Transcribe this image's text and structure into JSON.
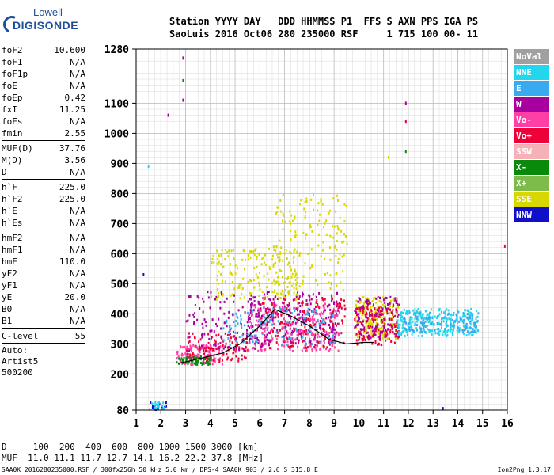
{
  "logo": {
    "line1": "Lowell",
    "line2": "DIGISONDE"
  },
  "header": {
    "labels": "Station YYYY DAY   DDD HHMMSS P1  FFS S AXN PPS IGA PS",
    "values": "SaoLuis 2016 Oct06 280 235000 RSF     1 715 100 00- 11"
  },
  "params": [
    {
      "k": "foF2",
      "v": "10.600"
    },
    {
      "k": "foF1",
      "v": "N/A"
    },
    {
      "k": "foF1p",
      "v": "N/A"
    },
    {
      "k": "foE",
      "v": "N/A"
    },
    {
      "k": "foEp",
      "v": "0.42"
    },
    {
      "k": "fxI",
      "v": "11.25"
    },
    {
      "k": "foEs",
      "v": "N/A"
    },
    {
      "k": "fmin",
      "v": "2.55"
    },
    {
      "sep": true
    },
    {
      "k": "MUF(D)",
      "v": "37.76"
    },
    {
      "k": "M(D)",
      "v": "3.56"
    },
    {
      "k": "D",
      "v": "N/A"
    },
    {
      "sep": true
    },
    {
      "k": "h`F",
      "v": "225.0"
    },
    {
      "k": "h`F2",
      "v": "225.0"
    },
    {
      "k": "h`E",
      "v": "N/A"
    },
    {
      "k": "h`Es",
      "v": "N/A"
    },
    {
      "sep": true
    },
    {
      "k": "hmF2",
      "v": "N/A"
    },
    {
      "k": "hmF1",
      "v": "N/A"
    },
    {
      "k": "hmE",
      "v": "110.0"
    },
    {
      "k": "yF2",
      "v": "N/A"
    },
    {
      "k": "yF1",
      "v": "N/A"
    },
    {
      "k": "yE",
      "v": "20.0"
    },
    {
      "k": "B0",
      "v": "N/A"
    },
    {
      "k": "B1",
      "v": "N/A"
    },
    {
      "sep": true
    },
    {
      "k": "C-level",
      "v": "55"
    },
    {
      "sep": true
    }
  ],
  "auto": [
    "Auto:",
    "Artist5",
    "500200"
  ],
  "legend": [
    {
      "label": "NoVal",
      "color": "#a0a0a0"
    },
    {
      "label": "NNE",
      "color": "#22d6ee"
    },
    {
      "label": "E",
      "color": "#3aaaf0"
    },
    {
      "label": "W",
      "color": "#a8009e"
    },
    {
      "label": "Vo-",
      "color": "#ff3fa5"
    },
    {
      "label": "Vo+",
      "color": "#ee0038"
    },
    {
      "label": "SSW",
      "color": "#f5b0b8"
    },
    {
      "label": "X-",
      "color": "#0a8a0a"
    },
    {
      "label": "X+",
      "color": "#7dbb4a"
    },
    {
      "label": "SSE",
      "color": "#d8d800"
    },
    {
      "label": "NNW",
      "color": "#1010c8"
    }
  ],
  "bottom": {
    "d_line": "D     100  200  400  600  800 1000 1500 3000 [km]",
    "muf_line": "MUF  11.0 11.1 11.7 12.7 14.1 16.2 22.2 37.8 [MHz]"
  },
  "footer": {
    "left": "SAA0K_2016280235000.RSF / 300fx256h 50 kHz 5.0 km / DPS-4 SAA0K 903 / 2.6 S 315.8 E",
    "right": "Ion2Png 1.3.17"
  },
  "chart_data": {
    "type": "scatter",
    "title": "",
    "xlabel": "",
    "ylabel": "",
    "x_ticks": [
      1,
      2,
      3,
      4,
      5,
      6,
      7,
      8,
      9,
      10,
      11,
      12,
      13,
      14,
      15,
      16
    ],
    "y_ticks": [
      80,
      200,
      300,
      400,
      500,
      600,
      700,
      800,
      900,
      1000,
      1100,
      1280
    ],
    "xlim": [
      1,
      16
    ],
    "ylim": [
      80,
      1280
    ],
    "grid": true,
    "series": [
      {
        "legend": "trace-line",
        "color": "#000000",
        "x": [
          2.7,
          3.5,
          4.5,
          5.2,
          6.0,
          6.6,
          7.2,
          8.0,
          8.8,
          9.5,
          10.2,
          10.6
        ],
        "y": [
          235,
          250,
          270,
          300,
          360,
          415,
          395,
          360,
          315,
          300,
          305,
          305
        ]
      }
    ],
    "clusters": [
      {
        "color": "#ff3fa5",
        "x": [
          2.6,
          4.5
        ],
        "y": [
          235,
          300
        ],
        "n": 140
      },
      {
        "color": "#ee0038",
        "x": [
          3.0,
          5.5
        ],
        "y": [
          245,
          340
        ],
        "n": 110
      },
      {
        "color": "#0a8a0a",
        "x": [
          2.6,
          4.0
        ],
        "y": [
          235,
          260
        ],
        "n": 60
      },
      {
        "color": "#a8009e",
        "x": [
          5.5,
          9.2
        ],
        "y": [
          300,
          480
        ],
        "n": 260
      },
      {
        "color": "#ff3fa5",
        "x": [
          5.5,
          9.2
        ],
        "y": [
          280,
          440
        ],
        "n": 220
      },
      {
        "color": "#ee0038",
        "x": [
          6.0,
          9.5
        ],
        "y": [
          290,
          460
        ],
        "n": 160
      },
      {
        "color": "#3aaaf0",
        "x": [
          4.5,
          9.0
        ],
        "y": [
          300,
          420
        ],
        "n": 120
      },
      {
        "color": "#d8d800",
        "x": [
          4.0,
          7.5
        ],
        "y": [
          450,
          620
        ],
        "n": 180
      },
      {
        "color": "#d8d800",
        "x": [
          9.8,
          11.6
        ],
        "y": [
          320,
          460
        ],
        "n": 220
      },
      {
        "color": "#ee0038",
        "x": [
          9.8,
          11.6
        ],
        "y": [
          300,
          430
        ],
        "n": 140
      },
      {
        "color": "#a8009e",
        "x": [
          9.8,
          11.6
        ],
        "y": [
          320,
          460
        ],
        "n": 120
      },
      {
        "color": "#22d6ee",
        "x": [
          11.5,
          14.8
        ],
        "y": [
          330,
          420
        ],
        "n": 260
      },
      {
        "color": "#3aaaf0",
        "x": [
          11.8,
          14.8
        ],
        "y": [
          340,
          410
        ],
        "n": 120
      },
      {
        "color": "#a8009e",
        "x": [
          3.0,
          6.5
        ],
        "y": [
          280,
          480
        ],
        "n": 120
      },
      {
        "color": "#d8d800",
        "x": [
          6.5,
          9.5
        ],
        "y": [
          480,
          800
        ],
        "n": 160
      },
      {
        "color": "#1010c8",
        "x": [
          1.5,
          2.2
        ],
        "y": [
          85,
          110
        ],
        "n": 20
      },
      {
        "color": "#22d6ee",
        "x": [
          1.5,
          2.2
        ],
        "y": [
          85,
          110
        ],
        "n": 20
      }
    ],
    "isolated_points": [
      {
        "x": 2.9,
        "y": 1250,
        "color": "#a8009e"
      },
      {
        "x": 2.9,
        "y": 1175,
        "color": "#0a8a0a"
      },
      {
        "x": 2.9,
        "y": 1110,
        "color": "#a8009e"
      },
      {
        "x": 2.3,
        "y": 1060,
        "color": "#a8009e"
      },
      {
        "x": 1.5,
        "y": 890,
        "color": "#22d6ee"
      },
      {
        "x": 11.9,
        "y": 1040,
        "color": "#ee0038"
      },
      {
        "x": 11.9,
        "y": 940,
        "color": "#0a8a0a"
      },
      {
        "x": 11.9,
        "y": 1100,
        "color": "#a8009e"
      },
      {
        "x": 11.2,
        "y": 920,
        "color": "#d8d800"
      },
      {
        "x": 15.9,
        "y": 625,
        "color": "#ee0038"
      },
      {
        "x": 1.3,
        "y": 530,
        "color": "#1010c8"
      },
      {
        "x": 13.4,
        "y": 85,
        "color": "#1010c8"
      }
    ]
  }
}
